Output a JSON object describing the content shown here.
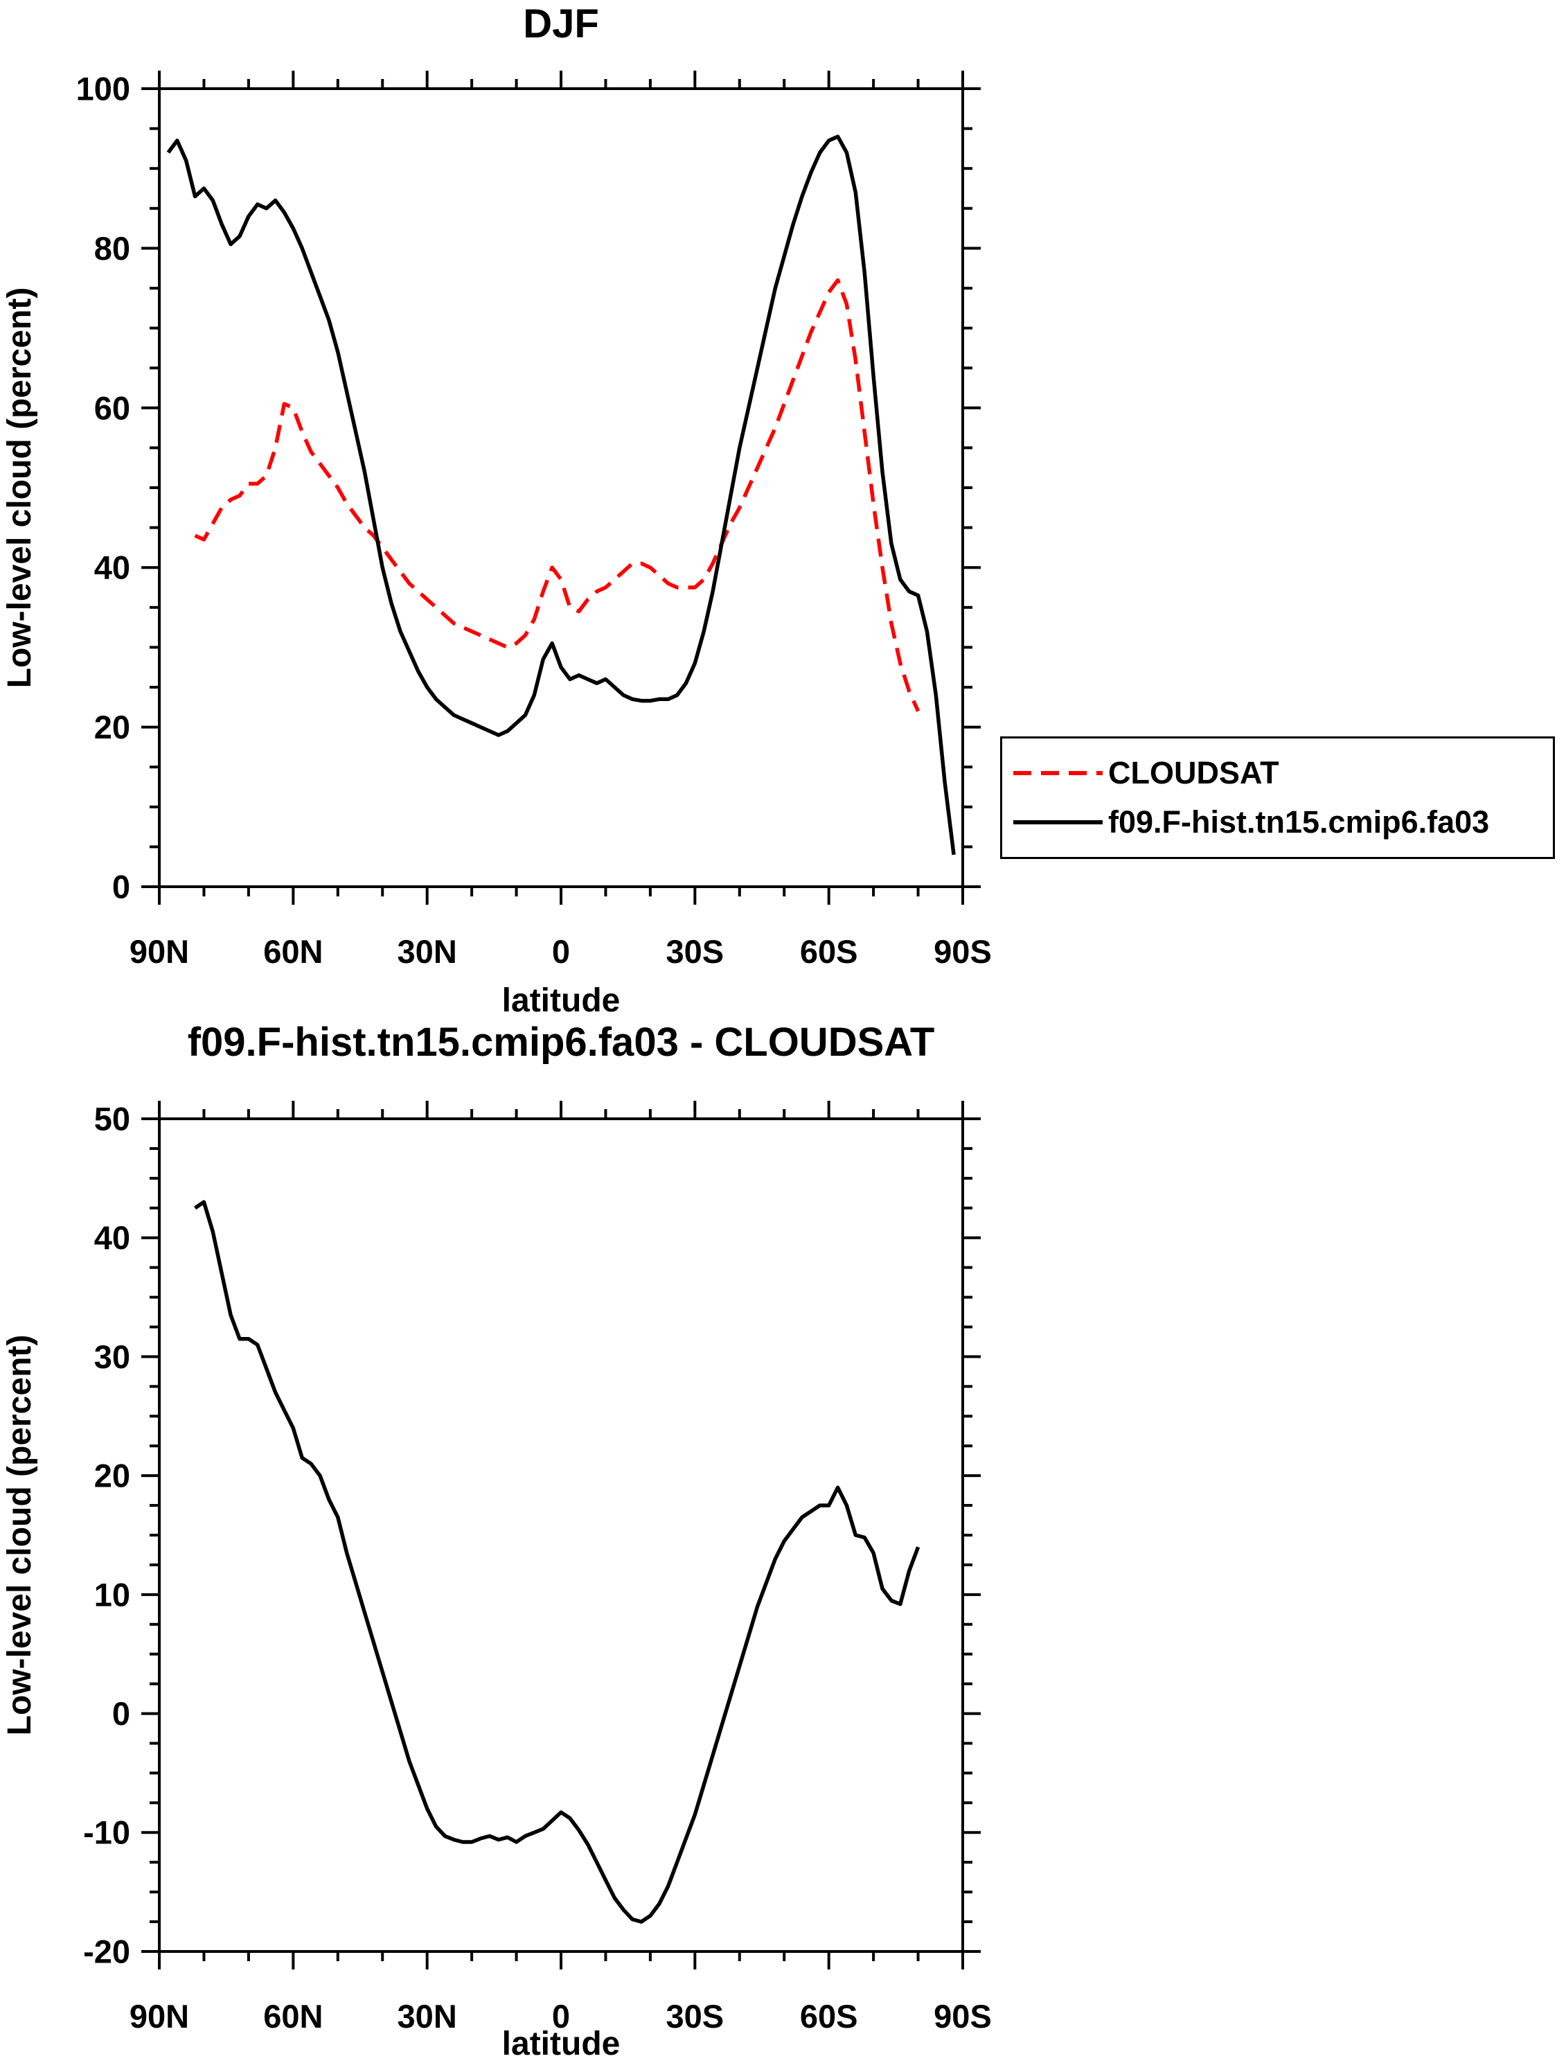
{
  "figure": {
    "background": "#ffffff",
    "accent_red": "#ff0000",
    "line_black": "#000000"
  },
  "chart_data": [
    {
      "type": "line",
      "title": "DJF",
      "xlabel": "latitude",
      "ylabel": "Low-level cloud (percent)",
      "xlim": [
        90,
        -90
      ],
      "ylim": [
        0,
        100
      ],
      "xtick_values": [
        90,
        60,
        30,
        0,
        -30,
        -60,
        -90
      ],
      "xtick_labels": [
        "90N",
        "60N",
        "30N",
        "0",
        "30S",
        "60S",
        "90S"
      ],
      "ytick_values": [
        0,
        20,
        40,
        60,
        80,
        100
      ],
      "ytick_labels": [
        "0",
        "20",
        "40",
        "60",
        "80",
        "100"
      ],
      "grid": false,
      "legend_position": "outside-right-lower",
      "series": [
        {
          "name": "CLOUDSAT",
          "color": "#ff0000",
          "line_style": "dashed",
          "lat": [
            82,
            80,
            78,
            76,
            74,
            72,
            70,
            68,
            66,
            64,
            62,
            60,
            58,
            56,
            54,
            52,
            50,
            48,
            46,
            44,
            42,
            40,
            38,
            36,
            34,
            32,
            30,
            28,
            26,
            24,
            22,
            20,
            18,
            16,
            14,
            12,
            10,
            8,
            6,
            4,
            2,
            0,
            -2,
            -4,
            -6,
            -8,
            -10,
            -12,
            -14,
            -16,
            -18,
            -20,
            -22,
            -24,
            -26,
            -28,
            -30,
            -32,
            -34,
            -36,
            -38,
            -40,
            -42,
            -44,
            -46,
            -48,
            -50,
            -52,
            -54,
            -56,
            -58,
            -60,
            -62,
            -64,
            -66,
            -68,
            -70,
            -72,
            -74,
            -76,
            -78,
            -80
          ],
          "values": [
            44,
            43.5,
            45.5,
            47.5,
            48.5,
            49,
            50.5,
            50.5,
            51.5,
            55,
            60.5,
            60,
            57,
            54.5,
            53,
            51.5,
            50,
            48,
            46.5,
            45,
            44,
            42.5,
            41,
            39.5,
            38,
            37,
            36,
            35,
            34,
            33,
            32.5,
            32,
            31.5,
            31,
            30.5,
            30,
            30.5,
            31.5,
            33.5,
            37,
            40,
            38.5,
            35,
            34.5,
            36,
            37,
            37.5,
            38.5,
            39.5,
            40.5,
            40.5,
            40,
            39,
            38,
            37.5,
            37.5,
            37.5,
            38.5,
            40.5,
            43,
            45.5,
            47.5,
            50,
            52.5,
            55,
            57.5,
            60.5,
            63.5,
            66.5,
            69.5,
            72,
            74.5,
            76,
            73,
            66,
            57,
            48,
            40,
            33,
            28,
            24.5,
            22
          ]
        },
        {
          "name": "f09.F-hist.tn15.cmip6.fa03",
          "color": "#000000",
          "line_style": "solid",
          "lat": [
            88,
            86,
            84,
            82,
            80,
            78,
            76,
            74,
            72,
            70,
            68,
            66,
            64,
            62,
            60,
            58,
            56,
            54,
            52,
            50,
            48,
            46,
            44,
            42,
            40,
            38,
            36,
            34,
            32,
            30,
            28,
            26,
            24,
            22,
            20,
            18,
            16,
            14,
            12,
            10,
            8,
            6,
            4,
            2,
            0,
            -2,
            -4,
            -6,
            -8,
            -10,
            -12,
            -14,
            -16,
            -18,
            -20,
            -22,
            -24,
            -26,
            -28,
            -30,
            -32,
            -34,
            -36,
            -38,
            -40,
            -42,
            -44,
            -46,
            -48,
            -50,
            -52,
            -54,
            -56,
            -58,
            -60,
            -62,
            -64,
            -66,
            -68,
            -70,
            -72,
            -74,
            -76,
            -78,
            -80,
            -82,
            -84,
            -86,
            -88
          ],
          "values": [
            92,
            93.5,
            91,
            86.5,
            87.5,
            86,
            83,
            80.5,
            81.5,
            84,
            85.5,
            85,
            86,
            84.5,
            82.5,
            80,
            77,
            74,
            71,
            67,
            62,
            57,
            52,
            46,
            40,
            35.5,
            32,
            29.5,
            27,
            25,
            23.5,
            22.5,
            21.5,
            21,
            20.5,
            20,
            19.5,
            19,
            19.5,
            20.5,
            21.5,
            24,
            28.5,
            30.5,
            27.5,
            26,
            26.5,
            26,
            25.5,
            26,
            25,
            24,
            23.5,
            23.3,
            23.3,
            23.5,
            23.5,
            24,
            25.5,
            28,
            32,
            37,
            43,
            49,
            55,
            60,
            65,
            70,
            75,
            79,
            83,
            86.5,
            89.5,
            92,
            93.5,
            94,
            92,
            87,
            77,
            64,
            52,
            43,
            38.5,
            37,
            36.5,
            32,
            24,
            13,
            4
          ]
        }
      ]
    },
    {
      "type": "line",
      "title": "f09.F-hist.tn15.cmip6.fa03 - CLOUDSAT",
      "xlabel": "latitude",
      "ylabel": "Low-level cloud (percent)",
      "xlim": [
        90,
        -90
      ],
      "ylim": [
        -20,
        50
      ],
      "xtick_values": [
        90,
        60,
        30,
        0,
        -30,
        -60,
        -90
      ],
      "xtick_labels": [
        "90N",
        "60N",
        "30N",
        "0",
        "30S",
        "60S",
        "90S"
      ],
      "ytick_values": [
        -20,
        -10,
        0,
        10,
        20,
        30,
        40,
        50
      ],
      "ytick_labels": [
        "-20",
        "-10",
        "0",
        "10",
        "20",
        "30",
        "40",
        "50"
      ],
      "grid": false,
      "legend_position": "none",
      "series": [
        {
          "name": "f09.F-hist.tn15.cmip6.fa03 - CLOUDSAT",
          "color": "#000000",
          "line_style": "solid",
          "lat": [
            82,
            80,
            78,
            76,
            74,
            72,
            70,
            68,
            66,
            64,
            62,
            60,
            58,
            56,
            54,
            52,
            50,
            48,
            46,
            44,
            42,
            40,
            38,
            36,
            34,
            32,
            30,
            28,
            26,
            24,
            22,
            20,
            18,
            16,
            14,
            12,
            10,
            8,
            6,
            4,
            2,
            0,
            -2,
            -4,
            -6,
            -8,
            -10,
            -12,
            -14,
            -16,
            -18,
            -20,
            -22,
            -24,
            -26,
            -28,
            -30,
            -32,
            -34,
            -36,
            -38,
            -40,
            -42,
            -44,
            -46,
            -48,
            -50,
            -52,
            -54,
            -56,
            -58,
            -60,
            -62,
            -64,
            -66,
            -68,
            -70,
            -72,
            -74,
            -76,
            -78,
            -80
          ],
          "values": [
            42.5,
            43,
            40.5,
            37,
            33.5,
            31.5,
            31.5,
            31,
            29,
            27,
            25.5,
            24,
            21.5,
            21,
            20,
            18,
            16.5,
            13.5,
            11,
            8.5,
            6,
            3.5,
            1,
            -1.5,
            -4,
            -6,
            -8,
            -9.5,
            -10.3,
            -10.6,
            -10.8,
            -10.8,
            -10.5,
            -10.3,
            -10.6,
            -10.4,
            -10.8,
            -10.3,
            -10,
            -9.7,
            -9,
            -8.3,
            -8.8,
            -9.8,
            -11,
            -12.5,
            -14,
            -15.5,
            -16.5,
            -17.3,
            -17.5,
            -17,
            -16,
            -14.5,
            -12.5,
            -10.5,
            -8.5,
            -6,
            -3.5,
            -1,
            1.5,
            4,
            6.5,
            9,
            11,
            13,
            14.5,
            15.5,
            16.5,
            17,
            17.5,
            17.5,
            19,
            17.5,
            15,
            14.8,
            13.5,
            10.5,
            9.5,
            9.2,
            12,
            14
          ]
        }
      ]
    }
  ]
}
